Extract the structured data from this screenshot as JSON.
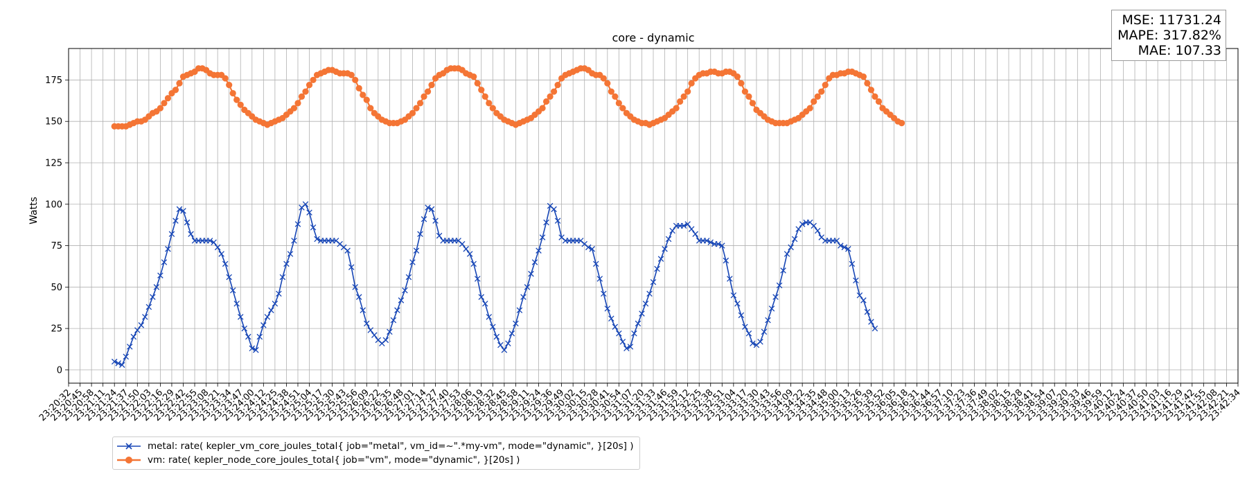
{
  "chart_data": {
    "type": "line",
    "title": "core - dynamic",
    "xlabel": "",
    "ylabel": "Watts",
    "ylim": [
      -8,
      194
    ],
    "yticks": [
      0,
      25,
      50,
      75,
      100,
      125,
      150,
      175
    ],
    "grid": true,
    "legend_position": "bottom-left",
    "x_start_time": "23:20:32",
    "x_interval_seconds": 13,
    "x_tick_labels": [
      "23:20:32",
      "23:20:45",
      "23:20:58",
      "23:21:11",
      "23:21:24",
      "23:21:37",
      "23:21:50",
      "23:22:03",
      "23:22:16",
      "23:22:29",
      "23:22:42",
      "23:22:55",
      "23:23:08",
      "23:23:21",
      "23:23:34",
      "23:23:47",
      "23:24:00",
      "23:24:12",
      "23:24:25",
      "23:24:38",
      "23:24:51",
      "23:25:04",
      "23:25:17",
      "23:25:30",
      "23:25:43",
      "23:25:56",
      "23:26:09",
      "23:26:22",
      "23:26:35",
      "23:26:48",
      "23:27:01",
      "23:27:14",
      "23:27:27",
      "23:27:40",
      "23:27:53",
      "23:28:06",
      "23:28:19",
      "23:28:32",
      "23:28:45",
      "23:28:58",
      "23:29:11",
      "23:29:24",
      "23:29:36",
      "23:29:49",
      "23:30:02",
      "23:30:15",
      "23:30:28",
      "23:30:41",
      "23:30:54",
      "23:31:07",
      "23:31:20",
      "23:31:33",
      "23:31:46",
      "23:31:59",
      "23:32:12",
      "23:32:25",
      "23:32:38",
      "23:32:51",
      "23:33:04",
      "23:33:17",
      "23:33:30",
      "23:33:43",
      "23:33:56",
      "23:34:09",
      "23:34:22",
      "23:34:35",
      "23:34:48",
      "23:35:00",
      "23:35:13",
      "23:35:26",
      "23:35:39",
      "23:35:52",
      "23:36:05",
      "23:36:18",
      "23:36:31",
      "23:36:44",
      "23:36:57",
      "23:37:10",
      "23:37:23",
      "23:37:36",
      "23:37:49",
      "23:38:02",
      "23:38:15",
      "23:38:28",
      "23:38:41",
      "23:38:54",
      "23:39:07",
      "23:39:20",
      "23:39:33",
      "23:39:46",
      "23:39:59",
      "23:40:12",
      "23:40:24",
      "23:40:37",
      "23:40:50",
      "23:41:03",
      "23:41:16",
      "23:41:29",
      "23:41:42",
      "23:41:55",
      "23:42:08",
      "23:42:21",
      "23:42:34"
    ],
    "series": [
      {
        "name": "metal: rate( kepler_vm_core_joules_total{ job=\"metal\", vm_id=~\".*my-vm\", mode=\"dynamic\", }[20s] )",
        "color": "#1645b5",
        "marker": "x",
        "start_index": 4,
        "points_per_tick": 3,
        "values": [
          5,
          4,
          3,
          8,
          14,
          20,
          24,
          27,
          32,
          38,
          44,
          50,
          57,
          65,
          73,
          82,
          90,
          97,
          96,
          89,
          82,
          78,
          78,
          78,
          78,
          78,
          77,
          74,
          70,
          64,
          56,
          48,
          40,
          32,
          25,
          20,
          13,
          12,
          20,
          27,
          32,
          36,
          40,
          46,
          56,
          64,
          70,
          78,
          88,
          98,
          100,
          95,
          86,
          79,
          78,
          78,
          78,
          78,
          78,
          76,
          74,
          72,
          62,
          50,
          44,
          36,
          28,
          24,
          21,
          18,
          16,
          18,
          23,
          30,
          36,
          42,
          48,
          56,
          65,
          72,
          82,
          91,
          98,
          97,
          90,
          81,
          78,
          78,
          78,
          78,
          78,
          76,
          73,
          70,
          64,
          55,
          44,
          40,
          32,
          26,
          20,
          15,
          12,
          16,
          22,
          28,
          36,
          44,
          50,
          58,
          65,
          72,
          80,
          89,
          99,
          97,
          90,
          80,
          78,
          78,
          78,
          78,
          78,
          76,
          74,
          73,
          64,
          55,
          46,
          37,
          31,
          26,
          22,
          17,
          13,
          14,
          22,
          28,
          34,
          40,
          46,
          53,
          61,
          67,
          73,
          79,
          84,
          87,
          87,
          87,
          88,
          85,
          82,
          78,
          78,
          78,
          77,
          76,
          76,
          75,
          66,
          55,
          45,
          40,
          33,
          26,
          22,
          16,
          15,
          17,
          23,
          30,
          37,
          44,
          51,
          60,
          70,
          74,
          79,
          85,
          88,
          89,
          89,
          87,
          84,
          80,
          78,
          78,
          78,
          78,
          75,
          74,
          73,
          64,
          54,
          45,
          42,
          35,
          29,
          25
        ]
      },
      {
        "name": "vm: rate( kepler_node_core_joules_total{ job=\"vm\", mode=\"dynamic\", }[20s] )",
        "color": "#f47535",
        "marker": "o",
        "start_index": 4,
        "points_per_tick": 3,
        "values": [
          147,
          147,
          147,
          147,
          148,
          149,
          150,
          150,
          151,
          153,
          155,
          156,
          158,
          161,
          164,
          167,
          169,
          173,
          177,
          178,
          179,
          180,
          182,
          182,
          181,
          179,
          178,
          178,
          178,
          176,
          172,
          167,
          163,
          160,
          157,
          155,
          153,
          151,
          150,
          149,
          148,
          149,
          150,
          151,
          152,
          154,
          156,
          158,
          161,
          165,
          168,
          172,
          175,
          178,
          179,
          180,
          181,
          181,
          180,
          179,
          179,
          179,
          178,
          175,
          170,
          166,
          163,
          158,
          155,
          153,
          151,
          150,
          149,
          149,
          149,
          150,
          151,
          153,
          155,
          158,
          161,
          165,
          168,
          172,
          176,
          178,
          179,
          181,
          182,
          182,
          182,
          181,
          179,
          178,
          177,
          173,
          169,
          165,
          161,
          158,
          155,
          153,
          151,
          150,
          149,
          148,
          149,
          150,
          151,
          152,
          154,
          156,
          158,
          162,
          165,
          168,
          172,
          176,
          178,
          179,
          180,
          181,
          182,
          182,
          181,
          179,
          178,
          178,
          176,
          173,
          168,
          165,
          161,
          158,
          155,
          153,
          151,
          150,
          149,
          149,
          148,
          149,
          150,
          151,
          152,
          154,
          156,
          158,
          162,
          165,
          168,
          173,
          176,
          178,
          179,
          179,
          180,
          180,
          179,
          179,
          180,
          180,
          179,
          177,
          173,
          168,
          165,
          161,
          157,
          155,
          153,
          151,
          150,
          149,
          149,
          149,
          149,
          150,
          151,
          152,
          154,
          156,
          158,
          162,
          165,
          168,
          172,
          176,
          178,
          178,
          179,
          179,
          180,
          180,
          179,
          178,
          177,
          173,
          169,
          165,
          162,
          158,
          156,
          154,
          152,
          150,
          149
        ]
      }
    ]
  },
  "stats": {
    "mse": "MSE: 11731.24",
    "mape": "MAPE: 317.82%",
    "mae": "MAE: 107.33"
  }
}
